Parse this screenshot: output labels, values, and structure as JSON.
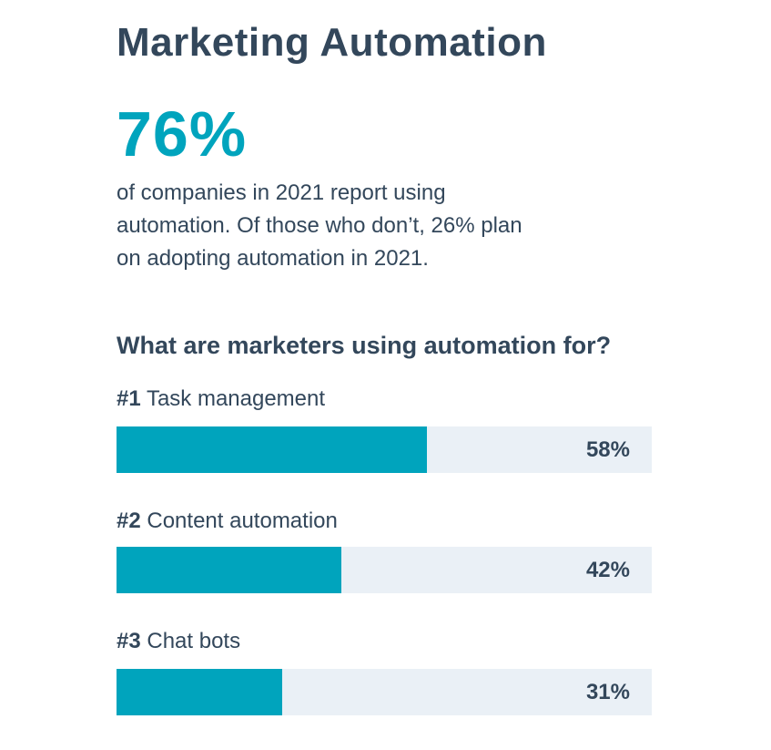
{
  "title": "Marketing Automation",
  "big_stat": {
    "value": "76%",
    "description": "of companies in 2021 report using automation. Of those who don’t, 26% plan on adopting automation in 2021."
  },
  "section_heading": "What are marketers using automation for?",
  "colors": {
    "accent": "#00a4bd",
    "track": "#eaf0f6",
    "text": "#33475b"
  },
  "chart_data": {
    "type": "bar",
    "orientation": "horizontal",
    "ylim": [
      0,
      100
    ],
    "items": [
      {
        "rank": "#1",
        "label": "Task management",
        "value": 58,
        "value_label": "58%"
      },
      {
        "rank": "#2",
        "label": "Content automation",
        "value": 42,
        "value_label": "42%"
      },
      {
        "rank": "#3",
        "label": "Chat bots",
        "value": 31,
        "value_label": "31%"
      }
    ]
  }
}
